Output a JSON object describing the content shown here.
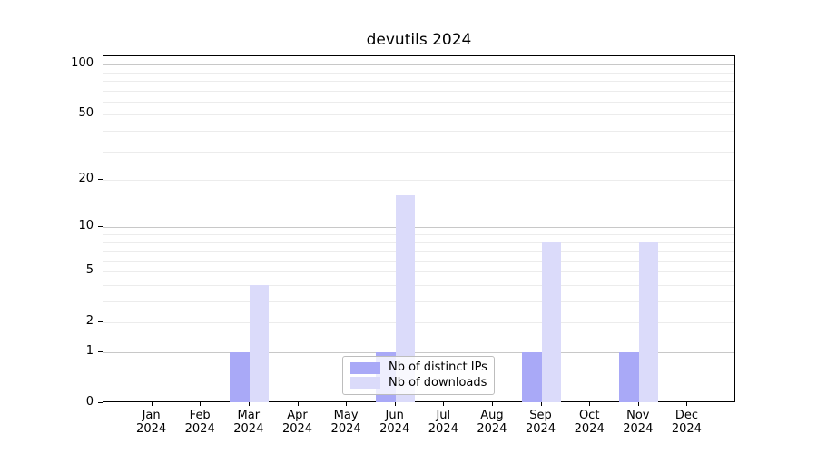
{
  "chart_data": {
    "type": "bar",
    "title": "devutils 2024",
    "categories": [
      {
        "month": "Jan",
        "year": "2024"
      },
      {
        "month": "Feb",
        "year": "2024"
      },
      {
        "month": "Mar",
        "year": "2024"
      },
      {
        "month": "Apr",
        "year": "2024"
      },
      {
        "month": "May",
        "year": "2024"
      },
      {
        "month": "Jun",
        "year": "2024"
      },
      {
        "month": "Jul",
        "year": "2024"
      },
      {
        "month": "Aug",
        "year": "2024"
      },
      {
        "month": "Sep",
        "year": "2024"
      },
      {
        "month": "Oct",
        "year": "2024"
      },
      {
        "month": "Nov",
        "year": "2024"
      },
      {
        "month": "Dec",
        "year": "2024"
      }
    ],
    "series": [
      {
        "name": "Nb of distinct IPs",
        "color": "#a9a9f7",
        "values": [
          0,
          0,
          1,
          0,
          0,
          1,
          0,
          0,
          1,
          0,
          1,
          0
        ]
      },
      {
        "name": "Nb of downloads",
        "color": "#dbdbfa",
        "values": [
          0,
          0,
          4,
          0,
          0,
          16,
          0,
          0,
          8,
          0,
          8,
          0
        ]
      }
    ],
    "yscale": "log1p",
    "ylim": [
      0,
      113
    ],
    "yticks": [
      0,
      1,
      2,
      5,
      10,
      20,
      50,
      100
    ],
    "minor_ytick_decades": [
      1,
      10
    ],
    "grid": true,
    "grid_major_color": "#c8c8c8",
    "grid_minor_color": "#ececec",
    "legend_position": "lower-center-inside",
    "xlabel": "",
    "ylabel": ""
  }
}
